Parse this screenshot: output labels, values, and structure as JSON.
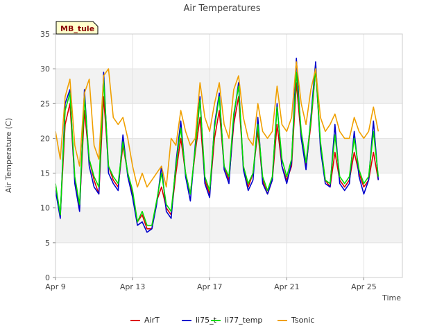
{
  "chart_data": {
    "type": "line",
    "title": "Air Temperatures",
    "xlabel": "Time",
    "ylabel": "Air Temperature (C)",
    "tag": "MB_tule",
    "xlim": [
      "2024-04-09",
      "2024-04-27"
    ],
    "ylim": [
      0,
      35
    ],
    "y_ticks": [
      0,
      5,
      10,
      15,
      20,
      25,
      30,
      35
    ],
    "x_ticks": [
      {
        "date": "2024-04-09",
        "label": "Apr 9"
      },
      {
        "date": "2024-04-13",
        "label": "Apr 13"
      },
      {
        "date": "2024-04-17",
        "label": "Apr 17"
      },
      {
        "date": "2024-04-21",
        "label": "Apr 21"
      },
      {
        "date": "2024-04-25",
        "label": "Apr 25"
      }
    ],
    "grid": true,
    "band_background": true,
    "legend_position": "bottom",
    "x_dates": [
      "2024-04-09 00:00",
      "2024-04-09 06:00",
      "2024-04-09 12:00",
      "2024-04-09 18:00",
      "2024-04-10 00:00",
      "2024-04-10 06:00",
      "2024-04-10 12:00",
      "2024-04-10 18:00",
      "2024-04-11 00:00",
      "2024-04-11 06:00",
      "2024-04-11 12:00",
      "2024-04-11 18:00",
      "2024-04-12 00:00",
      "2024-04-12 06:00",
      "2024-04-12 12:00",
      "2024-04-12 18:00",
      "2024-04-13 00:00",
      "2024-04-13 06:00",
      "2024-04-13 12:00",
      "2024-04-13 18:00",
      "2024-04-14 00:00",
      "2024-04-14 06:00",
      "2024-04-14 12:00",
      "2024-04-14 18:00",
      "2024-04-15 00:00",
      "2024-04-15 06:00",
      "2024-04-15 12:00",
      "2024-04-15 18:00",
      "2024-04-16 00:00",
      "2024-04-16 06:00",
      "2024-04-16 12:00",
      "2024-04-16 18:00",
      "2024-04-17 00:00",
      "2024-04-17 06:00",
      "2024-04-17 12:00",
      "2024-04-17 18:00",
      "2024-04-18 00:00",
      "2024-04-18 06:00",
      "2024-04-18 12:00",
      "2024-04-18 18:00",
      "2024-04-19 00:00",
      "2024-04-19 06:00",
      "2024-04-19 12:00",
      "2024-04-19 18:00",
      "2024-04-20 00:00",
      "2024-04-20 06:00",
      "2024-04-20 12:00",
      "2024-04-20 18:00",
      "2024-04-21 00:00",
      "2024-04-21 06:00",
      "2024-04-21 12:00",
      "2024-04-21 18:00",
      "2024-04-22 00:00",
      "2024-04-22 06:00",
      "2024-04-22 12:00",
      "2024-04-22 18:00",
      "2024-04-23 00:00",
      "2024-04-23 06:00",
      "2024-04-23 12:00",
      "2024-04-23 18:00",
      "2024-04-24 00:00",
      "2024-04-24 06:00",
      "2024-04-24 12:00",
      "2024-04-24 18:00",
      "2024-04-25 00:00",
      "2024-04-25 06:00",
      "2024-04-25 12:00",
      "2024-04-25 18:00",
      "2024-04-26 00:00",
      "2024-04-26 06:00",
      "2024-04-26 12:00"
    ],
    "series": [
      {
        "name": "AirT",
        "color": "#dd0000",
        "values": [
          13,
          9,
          22,
          25,
          14,
          10,
          24,
          17,
          14,
          12,
          26,
          16,
          14,
          13,
          19,
          15,
          12,
          8,
          9,
          7,
          7,
          11,
          13,
          10,
          9,
          15,
          20,
          15,
          12,
          18,
          23,
          14,
          12,
          20,
          24,
          16,
          14,
          22,
          26,
          16,
          13,
          15,
          21,
          14,
          12,
          14,
          22,
          16,
          14,
          16,
          28,
          20,
          16,
          22,
          30,
          19,
          14,
          13,
          18,
          14,
          13,
          14,
          18,
          15,
          13,
          14,
          18,
          14,
          null,
          null,
          null
        ]
      },
      {
        "name": "li75_t",
        "color": "#0000cc",
        "values": [
          12.5,
          8.5,
          25,
          27,
          13.5,
          9.5,
          27,
          16,
          13,
          12,
          29.5,
          15,
          13.5,
          12.5,
          20.5,
          14.5,
          11.5,
          7.5,
          8,
          6.5,
          7,
          10.5,
          16,
          9.5,
          8.5,
          16.5,
          22.5,
          14.5,
          11,
          19,
          26,
          13.5,
          11.5,
          22,
          26.5,
          15.5,
          13.5,
          23,
          28,
          15.5,
          12.5,
          14,
          23,
          13.5,
          12,
          14,
          25,
          16,
          13.5,
          16.5,
          31.5,
          20,
          15.5,
          23,
          31,
          18.5,
          13.5,
          13,
          22,
          13.5,
          12.5,
          13.5,
          21,
          14.5,
          12,
          14,
          22.5,
          14,
          null,
          null,
          null
        ]
      },
      {
        "name": "li77_temp",
        "color": "#00dd00",
        "values": [
          13.5,
          9,
          24,
          26.5,
          14.5,
          10.5,
          26,
          17,
          14.5,
          13,
          28.5,
          16,
          14.5,
          13.5,
          19.5,
          15,
          12.5,
          8,
          9.5,
          7.5,
          7.5,
          11,
          15,
          10.5,
          9.5,
          16,
          21.5,
          15,
          12,
          18.5,
          25.5,
          14.5,
          12.5,
          21.5,
          26,
          16,
          14.5,
          23.5,
          27.5,
          16,
          13.5,
          15,
          22,
          14.5,
          12.5,
          14.5,
          24.5,
          17,
          14.5,
          17,
          29.5,
          21,
          16.5,
          22.5,
          30,
          19.5,
          14,
          13.5,
          20.5,
          14.5,
          13.5,
          14.5,
          20,
          15.5,
          13.5,
          14.5,
          21,
          14.5,
          null,
          null,
          null
        ]
      },
      {
        "name": "Tsonic",
        "color": "#f0a000",
        "values": [
          21,
          17,
          26,
          28.5,
          19,
          16,
          26.5,
          28.5,
          19,
          17,
          29,
          30,
          23,
          22,
          23,
          20,
          16,
          13,
          15,
          13,
          14,
          15,
          16,
          13,
          20,
          19,
          24,
          21,
          19,
          20,
          28,
          23,
          21,
          25,
          28,
          22,
          20,
          27,
          29,
          23,
          20,
          19,
          25,
          21,
          20,
          21,
          27.5,
          22,
          21,
          23,
          31,
          25,
          22,
          27,
          30,
          23,
          21,
          22,
          23.5,
          21,
          20,
          20,
          23,
          21,
          20,
          21,
          24.5,
          21,
          null,
          null,
          null
        ]
      }
    ]
  }
}
